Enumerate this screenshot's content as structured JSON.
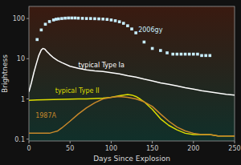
{
  "chart_data": {
    "type": "line",
    "xlabel": "Days Since Explosion",
    "ylabel": "Brightness",
    "xlim": [
      0,
      250
    ],
    "ylim": [
      0.09,
      200
    ],
    "xticks": [
      0,
      50,
      100,
      150,
      200,
      250
    ],
    "yticks": [
      0.1,
      1,
      10,
      100
    ],
    "log": "y",
    "grid": false,
    "series": [
      {
        "type": "scatter",
        "marker": "square",
        "color": "#c8eeff",
        "x": [
          10,
          15,
          20,
          25,
          30,
          33,
          36,
          40,
          44,
          48,
          52,
          56,
          60,
          65,
          70,
          75,
          80,
          85,
          90,
          95,
          100,
          105,
          110,
          115,
          120,
          125,
          130,
          140,
          150,
          160,
          168,
          175,
          180,
          185,
          190,
          195,
          200,
          205,
          210,
          215,
          220
        ],
        "values": [
          30,
          52,
          72,
          84,
          92,
          96,
          98,
          100,
          102,
          103,
          103,
          103,
          102,
          101,
          100,
          100,
          99,
          98,
          97,
          95,
          92,
          88,
          83,
          76,
          66,
          55,
          44,
          26,
          18,
          16,
          14,
          13,
          13,
          13,
          13,
          13,
          13,
          13,
          12,
          12,
          12
        ]
      },
      {
        "type": "line",
        "color": "#ffffff",
        "x": [
          0,
          3,
          6,
          9,
          12,
          15,
          17,
          19,
          22,
          25,
          30,
          35,
          40,
          50,
          60,
          70,
          80,
          90,
          100,
          110,
          120,
          130,
          140,
          150,
          160,
          170,
          180,
          190,
          200,
          210,
          220,
          230,
          240,
          250
        ],
        "values": [
          1.5,
          2.5,
          4.5,
          7.5,
          12,
          16.5,
          18,
          17.5,
          15,
          13,
          10.5,
          9,
          8,
          6.5,
          5.8,
          5.3,
          5.0,
          4.8,
          4.5,
          4.2,
          3.8,
          3.5,
          3.1,
          2.8,
          2.5,
          2.3,
          2.1,
          1.9,
          1.75,
          1.6,
          1.5,
          1.4,
          1.3,
          1.25
        ]
      },
      {
        "type": "line",
        "color": "#dddd00",
        "x": [
          0,
          5,
          10,
          20,
          30,
          40,
          50,
          60,
          70,
          80,
          90,
          100,
          105,
          110,
          115,
          120,
          125,
          130,
          135,
          140,
          150,
          160,
          170,
          180,
          190,
          200,
          210,
          220,
          230,
          240,
          250
        ],
        "values": [
          0.92,
          0.93,
          0.94,
          0.96,
          0.97,
          0.98,
          0.99,
          1.0,
          1.0,
          1.02,
          1.05,
          1.1,
          1.15,
          1.2,
          1.25,
          1.28,
          1.25,
          1.15,
          1.0,
          0.85,
          0.55,
          0.32,
          0.22,
          0.17,
          0.14,
          0.13,
          0.13,
          0.13,
          0.12,
          0.12,
          0.12
        ]
      },
      {
        "type": "line",
        "color": "#c8882a",
        "x": [
          0,
          5,
          10,
          15,
          20,
          25,
          30,
          35,
          40,
          50,
          60,
          70,
          80,
          90,
          100,
          110,
          120,
          130,
          140,
          150,
          160,
          170,
          180,
          190,
          200,
          210,
          220,
          230,
          240,
          250
        ],
        "values": [
          0.14,
          0.14,
          0.14,
          0.14,
          0.14,
          0.14,
          0.15,
          0.16,
          0.19,
          0.28,
          0.42,
          0.6,
          0.8,
          1.0,
          1.1,
          1.15,
          1.1,
          1.0,
          0.85,
          0.65,
          0.42,
          0.28,
          0.2,
          0.16,
          0.14,
          0.13,
          0.13,
          0.12,
          0.12,
          0.12
        ]
      }
    ],
    "annotations": [
      {
        "text": "2006gy",
        "x": 133,
        "y": 52
      },
      {
        "text": "typical Type Ia",
        "x": 60,
        "y": 6.8
      },
      {
        "text": "typical Type II",
        "x": 32,
        "y": 1.55
      },
      {
        "text": "1987A",
        "x": 8,
        "y": 0.38
      }
    ]
  }
}
